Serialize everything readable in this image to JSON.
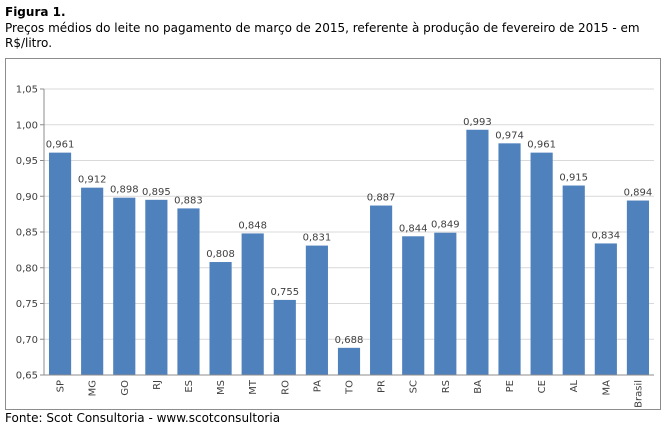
{
  "figure": {
    "label": "Figura 1.",
    "caption": "Preços médios do leite no pagamento de março de 2015, referente à produção de fevereiro de 2015 - em R$/litro.",
    "source": "Fonte: Scot Consultoria - www.scotconsultoria"
  },
  "chart_data": {
    "type": "bar",
    "title": "",
    "xlabel": "",
    "ylabel": "",
    "categories": [
      "SP",
      "MG",
      "GO",
      "RJ",
      "ES",
      "MS",
      "MT",
      "RO",
      "PA",
      "TO",
      "PR",
      "SC",
      "RS",
      "BA",
      "PE",
      "CE",
      "AL",
      "MA",
      "Brasil"
    ],
    "values": [
      0.961,
      0.912,
      0.898,
      0.895,
      0.883,
      0.808,
      0.848,
      0.755,
      0.831,
      0.688,
      0.887,
      0.844,
      0.849,
      0.993,
      0.974,
      0.961,
      0.915,
      0.834,
      0.894
    ],
    "value_labels": [
      "0,961",
      "0,912",
      "0,898",
      "0,895",
      "0,883",
      "0,808",
      "0,848",
      "0,755",
      "0,831",
      "0,688",
      "0,887",
      "0,844",
      "0,849",
      "0,993",
      "0,974",
      "0,961",
      "0,915",
      "0,834",
      "0,894"
    ],
    "ylim": [
      0.65,
      1.05
    ],
    "yticks": [
      0.65,
      0.7,
      0.75,
      0.8,
      0.85,
      0.9,
      0.95,
      1.0,
      1.05
    ],
    "ytick_labels": [
      "0,65",
      "0,70",
      "0,75",
      "0,80",
      "0,85",
      "0,90",
      "0,95",
      "1,00",
      "1,05"
    ],
    "grid": true,
    "bar_color": "#4f81bd"
  }
}
